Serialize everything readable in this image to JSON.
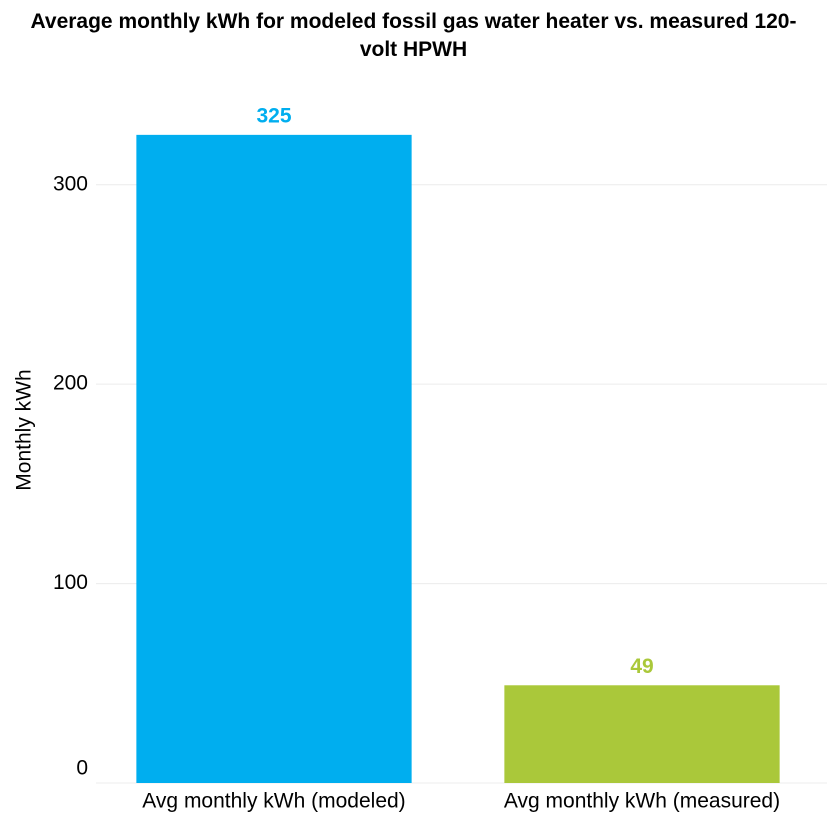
{
  "chart_data": {
    "type": "bar",
    "title": "Average monthly kWh for modeled fossil gas water heater vs. measured 120-volt HPWH",
    "ylabel": "Monthly kWh",
    "categories": [
      "Avg monthly kWh (modeled)",
      "Avg monthly kWh (measured)"
    ],
    "values": [
      325,
      49
    ],
    "colors": [
      "#00aeef",
      "#aac83a"
    ],
    "ylim": [
      0,
      350
    ],
    "yticks": [
      0,
      100,
      200,
      300
    ],
    "grid": true
  }
}
